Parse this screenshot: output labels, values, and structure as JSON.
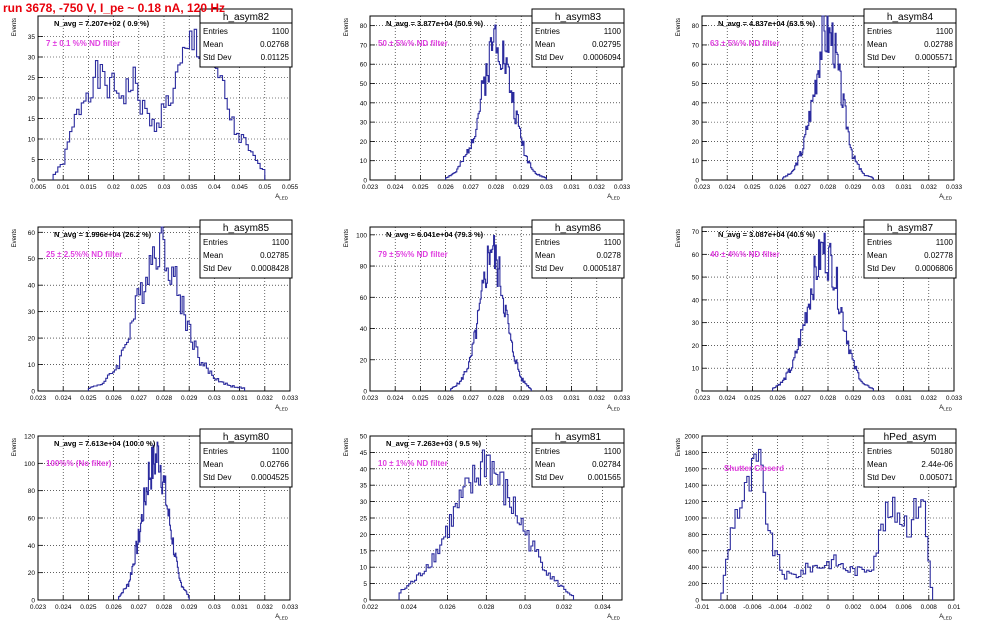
{
  "page": {
    "title": "run 3678,  -750 V, I_pe ~ 0.18 nA, 120 Hz"
  },
  "colors": {
    "line": "#2b2b9e",
    "annotation": "#e040e0",
    "title": "#e8000b",
    "frame": "#000000"
  },
  "chart_data": [
    {
      "type": "line",
      "name": "h_asym82",
      "xlabel": "A_LED",
      "ylabel": "Events",
      "xlim": [
        0.005,
        0.055
      ],
      "ylim": [
        0,
        40
      ],
      "xticks": [
        "0.005",
        "0.01",
        "0.015",
        "0.02",
        "0.025",
        "0.03",
        "0.035",
        "0.04",
        "0.045",
        "0.05",
        "0.055"
      ],
      "yticks": [
        "0",
        "5",
        "10",
        "15",
        "20",
        "25",
        "30",
        "35"
      ],
      "navg": "N_avg = 7.207e+02 ( 0.9 %)",
      "note": "7 ± 0.1 %% ND filter",
      "stats": {
        "Entries": "1100",
        "Mean": "0.02768",
        "Std Dev": "0.01125"
      },
      "x": [
        0.008,
        0.01,
        0.012,
        0.014,
        0.016,
        0.018,
        0.02,
        0.022,
        0.024,
        0.026,
        0.028,
        0.03,
        0.032,
        0.034,
        0.036,
        0.038,
        0.04,
        0.042,
        0.044,
        0.046,
        0.048,
        0.05
      ],
      "y": [
        1,
        4,
        13,
        20,
        25,
        24,
        22,
        21,
        24,
        17,
        13,
        17,
        22,
        29,
        34,
        33,
        27,
        21,
        12,
        9,
        5,
        2
      ]
    },
    {
      "type": "line",
      "name": "h_asym83",
      "xlabel": "A_LED",
      "ylabel": "Events",
      "xlim": [
        0.023,
        0.033
      ],
      "ylim": [
        0,
        85
      ],
      "xticks": [
        "0.023",
        "0.024",
        "0.025",
        "0.026",
        "0.027",
        "0.028",
        "0.029",
        "0.03",
        "0.031",
        "0.032",
        "0.033"
      ],
      "yticks": [
        "0",
        "10",
        "20",
        "30",
        "40",
        "50",
        "60",
        "70",
        "80"
      ],
      "navg": "N_avg = 3.877e+04 (50.9 %)",
      "note": "50 ± 5%% ND filter",
      "stats": {
        "Entries": "1100",
        "Mean": "0.02795",
        "Std Dev": "0.0006094"
      },
      "x": [
        0.026,
        0.0264,
        0.0268,
        0.0272,
        0.0276,
        0.028,
        0.0284,
        0.0288,
        0.0292,
        0.0296,
        0.03
      ],
      "y": [
        1,
        4,
        12,
        27,
        55,
        78,
        60,
        33,
        12,
        3,
        1
      ]
    },
    {
      "type": "line",
      "name": "h_asym84",
      "xlabel": "A_LED",
      "ylabel": "Events",
      "xlim": [
        0.023,
        0.033
      ],
      "ylim": [
        0,
        85
      ],
      "xticks": [
        "0.023",
        "0.024",
        "0.025",
        "0.026",
        "0.027",
        "0.028",
        "0.029",
        "0.03",
        "0.031",
        "0.032",
        "0.033"
      ],
      "yticks": [
        "0",
        "10",
        "20",
        "30",
        "40",
        "50",
        "60",
        "70",
        "80"
      ],
      "navg": "N_avg = 4.837e+04 (63.5 %)",
      "note": "63 ± 5%% ND filter",
      "stats": {
        "Entries": "1100",
        "Mean": "0.02788",
        "Std Dev": "0.0005571"
      },
      "x": [
        0.0262,
        0.0266,
        0.027,
        0.0274,
        0.0278,
        0.0282,
        0.0286,
        0.029,
        0.0294,
        0.0298
      ],
      "y": [
        1,
        4,
        16,
        42,
        76,
        74,
        40,
        12,
        3,
        1
      ]
    },
    {
      "type": "line",
      "name": "h_asym85",
      "xlabel": "A_LED",
      "ylabel": "Events",
      "xlim": [
        0.023,
        0.033
      ],
      "ylim": [
        0,
        62
      ],
      "xticks": [
        "0.023",
        "0.024",
        "0.025",
        "0.026",
        "0.027",
        "0.028",
        "0.029",
        "0.03",
        "0.031",
        "0.032",
        "0.033"
      ],
      "yticks": [
        "0",
        "10",
        "20",
        "30",
        "40",
        "50",
        "60"
      ],
      "navg": "N_avg = 1.996e+04 (26.2 %)",
      "note": "25 ± 2.5%% ND filter",
      "stats": {
        "Entries": "1100",
        "Mean": "0.02785",
        "Std Dev": "0.0008428"
      },
      "x": [
        0.025,
        0.0256,
        0.0262,
        0.0268,
        0.0274,
        0.0278,
        0.0282,
        0.0288,
        0.0294,
        0.03,
        0.0306,
        0.0312
      ],
      "y": [
        1,
        3,
        10,
        28,
        48,
        57,
        50,
        30,
        12,
        5,
        2,
        1
      ]
    },
    {
      "type": "line",
      "name": "h_asym86",
      "xlabel": "A_LED",
      "ylabel": "Events",
      "xlim": [
        0.023,
        0.033
      ],
      "ylim": [
        0,
        105
      ],
      "xticks": [
        "0.023",
        "0.024",
        "0.025",
        "0.026",
        "0.027",
        "0.028",
        "0.029",
        "0.03",
        "0.031",
        "0.032",
        "0.033"
      ],
      "yticks": [
        "0",
        "20",
        "40",
        "60",
        "80",
        "100"
      ],
      "navg": "N_avg = 6.041e+04 (79.3 %)",
      "note": "79 ± 5%% ND filter",
      "stats": {
        "Entries": "1100",
        "Mean": "0.0278",
        "Std Dev": "0.0005187"
      },
      "x": [
        0.0262,
        0.0266,
        0.027,
        0.0274,
        0.0278,
        0.0282,
        0.0286,
        0.029,
        0.0294
      ],
      "y": [
        1,
        6,
        20,
        55,
        96,
        70,
        30,
        8,
        1
      ]
    },
    {
      "type": "line",
      "name": "h_asym87",
      "xlabel": "A_LED",
      "ylabel": "Events",
      "xlim": [
        0.023,
        0.033
      ],
      "ylim": [
        0,
        72
      ],
      "xticks": [
        "0.023",
        "0.024",
        "0.025",
        "0.026",
        "0.027",
        "0.028",
        "0.029",
        "0.03",
        "0.031",
        "0.032",
        "0.033"
      ],
      "yticks": [
        "0",
        "10",
        "20",
        "30",
        "40",
        "50",
        "60",
        "70"
      ],
      "navg": "N_avg = 3.087e+04 (40.5 %)",
      "note": "40 ± 4%% ND filter",
      "stats": {
        "Entries": "1100",
        "Mean": "0.02778",
        "Std Dev": "0.0006806"
      },
      "x": [
        0.0258,
        0.0262,
        0.0266,
        0.027,
        0.0274,
        0.0278,
        0.0282,
        0.0286,
        0.029,
        0.0294,
        0.0298
      ],
      "y": [
        1,
        4,
        11,
        27,
        48,
        63,
        55,
        32,
        12,
        3,
        1
      ]
    },
    {
      "type": "line",
      "name": "h_asym80",
      "xlabel": "A_LED",
      "ylabel": "Events",
      "xlim": [
        0.023,
        0.033
      ],
      "ylim": [
        0,
        120
      ],
      "xticks": [
        "0.023",
        "0.024",
        "0.025",
        "0.026",
        "0.027",
        "0.028",
        "0.029",
        "0.03",
        "0.031",
        "0.032",
        "0.033"
      ],
      "yticks": [
        "0",
        "20",
        "40",
        "60",
        "80",
        "100",
        "120"
      ],
      "navg": "N_avg = 7.613e+04 (100.0 %)",
      "note": "100%% (No filter)",
      "stats": {
        "Entries": "1100",
        "Mean": "0.02766",
        "Std Dev": "0.0004525"
      },
      "x": [
        0.0262,
        0.0266,
        0.027,
        0.0274,
        0.0278,
        0.0282,
        0.0286,
        0.029
      ],
      "y": [
        2,
        12,
        45,
        92,
        108,
        60,
        15,
        2
      ]
    },
    {
      "type": "line",
      "name": "h_asym81",
      "xlabel": "A_LED",
      "ylabel": "Events",
      "xlim": [
        0.022,
        0.035
      ],
      "ylim": [
        0,
        50
      ],
      "xticks": [
        "0.022",
        "0.024",
        "0.026",
        "0.028",
        "0.03",
        "0.032",
        "0.034"
      ],
      "yticks": [
        "0",
        "5",
        "10",
        "15",
        "20",
        "25",
        "30",
        "35",
        "40",
        "45",
        "50"
      ],
      "navg": "N_avg = 7.263e+03 ( 9.5 %)",
      "note": "10 ± 1%% ND filter",
      "stats": {
        "Entries": "1100",
        "Mean": "0.02784",
        "Std Dev": "0.001565"
      },
      "x": [
        0.0235,
        0.0245,
        0.0255,
        0.0265,
        0.0275,
        0.028,
        0.0285,
        0.0295,
        0.0305,
        0.0315,
        0.0325
      ],
      "y": [
        2,
        7,
        15,
        28,
        37,
        44,
        38,
        27,
        15,
        6,
        1
      ]
    },
    {
      "type": "line",
      "name": "hPed_asym",
      "xlabel": "A_LED",
      "ylabel": "Events",
      "xlim": [
        -0.01,
        0.01
      ],
      "ylim": [
        0,
        2000
      ],
      "xticks": [
        "-0.01",
        "-0.008",
        "-0.006",
        "-0.004",
        "-0.002",
        "0",
        "0.002",
        "0.004",
        "0.006",
        "0.008",
        "0.01"
      ],
      "yticks": [
        "0",
        "200",
        "400",
        "600",
        "800",
        "1000",
        "1200",
        "1400",
        "1600",
        "1800",
        "2000"
      ],
      "navg": "",
      "note": "Shutter Closerd",
      "stats": {
        "Entries": "50180",
        "Mean": "2.44e-06",
        "Std Dev": "0.005071"
      },
      "x": [
        -0.0085,
        -0.0075,
        -0.0065,
        -0.0055,
        -0.0045,
        -0.0035,
        -0.0025,
        -0.0015,
        -0.0005,
        0.0005,
        0.0015,
        0.0025,
        0.0035,
        0.0045,
        0.0055,
        0.0065,
        0.0075,
        0.0083
      ],
      "y": [
        0,
        1000,
        1300,
        1700,
        700,
        300,
        300,
        400,
        420,
        480,
        380,
        350,
        420,
        1000,
        1100,
        900,
        1350,
        0
      ]
    }
  ]
}
